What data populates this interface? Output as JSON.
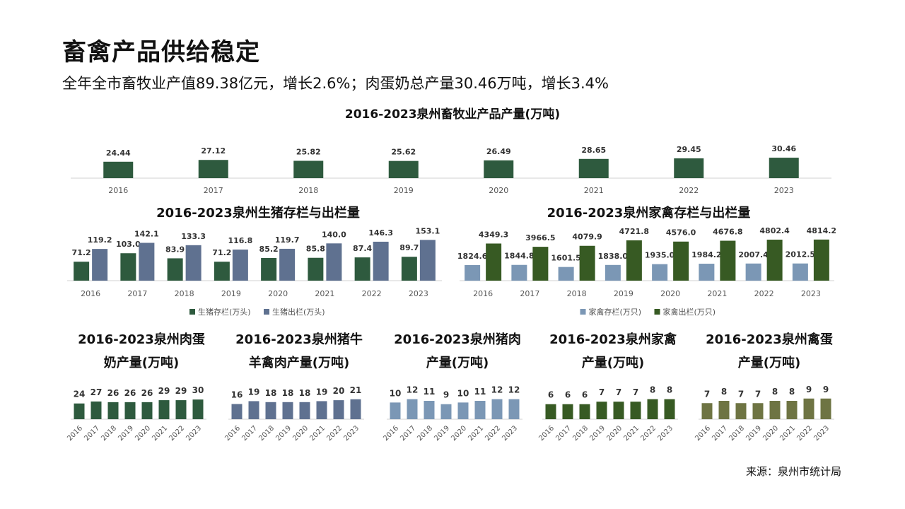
{
  "page": {
    "title": "畜禽产品供给稳定",
    "subtitle": "全年全市畜牧业产值89.38亿元，增长2.6%；肉蛋奶总产量30.46万吨，增长3.4%",
    "source": "来源：泉州市统计局"
  },
  "colors": {
    "dark_green": "#2e5a3e",
    "slate_blue": "#5f7190",
    "light_blue": "#7b97b5",
    "olive_green": "#375a23",
    "khaki_green": "#6e7443",
    "axis": "#d0d0d0",
    "tick_text": "#555555"
  },
  "chart_data": [
    {
      "id": "total",
      "type": "bar",
      "title": [
        "2016-2023泉州畜牧业产品产量(万吨)"
      ],
      "categories": [
        "2016",
        "2017",
        "2018",
        "2019",
        "2020",
        "2021",
        "2022",
        "2023"
      ],
      "series": [
        {
          "name": "畜牧业产品产量",
          "values": [
            24.44,
            27.12,
            25.82,
            25.62,
            26.49,
            28.65,
            29.45,
            30.46
          ],
          "labels": [
            "24.44",
            "27.12",
            "25.82",
            "25.62",
            "26.49",
            "28.65",
            "29.45",
            "30.46"
          ],
          "color": "#2e5a3e"
        }
      ],
      "ylim": [
        0,
        60
      ]
    },
    {
      "id": "pigs",
      "type": "bar",
      "title": [
        "2016-2023泉州生猪存栏与出栏量"
      ],
      "categories": [
        "2016",
        "2017",
        "2018",
        "2019",
        "2020",
        "2021",
        "2022",
        "2023"
      ],
      "series": [
        {
          "name": "生猪存栏(万头)",
          "values": [
            71.2,
            103.0,
            83.9,
            71.2,
            85.2,
            85.8,
            87.4,
            89.7
          ],
          "labels": [
            "71.2",
            "103.0",
            "83.9",
            "71.2",
            "85.2",
            "85.8",
            "87.4",
            "89.7"
          ],
          "color": "#2e5a3e"
        },
        {
          "name": "生猪出栏(万头)",
          "values": [
            119.2,
            142.1,
            133.3,
            116.8,
            119.7,
            140.0,
            146.3,
            153.1
          ],
          "labels": [
            "119.2",
            "142.1",
            "133.3",
            "116.8",
            "119.7",
            "140.0",
            "146.3",
            "153.1"
          ],
          "color": "#5f7190"
        }
      ],
      "ylim": [
        0,
        170
      ],
      "legend": "bottom"
    },
    {
      "id": "poultry",
      "type": "bar",
      "title": [
        "2016-2023泉州家禽存栏与出栏量"
      ],
      "categories": [
        "2016",
        "2017",
        "2018",
        "2019",
        "2020",
        "2021",
        "2022",
        "2023"
      ],
      "series": [
        {
          "name": "家禽存栏(万只)",
          "values": [
            1824.6,
            1844.8,
            1601.5,
            1838.0,
            1935.0,
            1984.2,
            2007.4,
            2012.5
          ],
          "labels": [
            "1824.6",
            "1844.8",
            "1601.5",
            "1838.0",
            "1935.0",
            "1984.2",
            "2007.4",
            "2012.5"
          ],
          "color": "#7b97b5"
        },
        {
          "name": "家禽出栏(万只)",
          "values": [
            4349.3,
            3966.5,
            4079.9,
            4721.8,
            4576.0,
            4676.8,
            4802.4,
            4814.2
          ],
          "labels": [
            "4349.3",
            "3966.5",
            "4079.9",
            "4721.8",
            "4576.0",
            "4676.8",
            "4802.4",
            "4814.2"
          ],
          "color": "#375a23"
        }
      ],
      "ylim": [
        0,
        5300
      ],
      "legend": "bottom"
    },
    {
      "id": "meat_egg_milk",
      "type": "bar",
      "title": [
        "2016-2023泉州肉蛋",
        "奶产量(万吨)"
      ],
      "categories": [
        "2016",
        "2017",
        "2018",
        "2019",
        "2020",
        "2021",
        "2022",
        "2023"
      ],
      "series": [
        {
          "name": "肉蛋奶产量",
          "values": [
            24,
            27,
            26,
            26,
            26,
            29,
            29,
            30
          ],
          "labels": [
            "24",
            "27",
            "26",
            "26",
            "26",
            "29",
            "29",
            "30"
          ],
          "color": "#2e5a3e"
        }
      ],
      "ylim": [
        0,
        42
      ]
    },
    {
      "id": "pork_beef_mutton_poultry",
      "type": "bar",
      "title": [
        "2016-2023泉州猪牛",
        "羊禽肉产量(万吨)"
      ],
      "categories": [
        "2016",
        "2017",
        "2018",
        "2019",
        "2020",
        "2021",
        "2022",
        "2023"
      ],
      "series": [
        {
          "name": "猪牛羊禽肉产量",
          "values": [
            16,
            19,
            18,
            18,
            18,
            19,
            20,
            21
          ],
          "labels": [
            "16",
            "19",
            "18",
            "18",
            "18",
            "19",
            "20",
            "21"
          ],
          "color": "#5f7190"
        }
      ],
      "ylim": [
        0,
        29
      ]
    },
    {
      "id": "pork",
      "type": "bar",
      "title": [
        "2016-2023泉州猪肉",
        "产量(万吨)"
      ],
      "categories": [
        "2016",
        "2017",
        "2018",
        "2019",
        "2020",
        "2021",
        "2022",
        "2023"
      ],
      "series": [
        {
          "name": "猪肉产量",
          "values": [
            10,
            12,
            11,
            9,
            10,
            11,
            12,
            12
          ],
          "labels": [
            "10",
            "12",
            "11",
            "9",
            "10",
            "11",
            "12",
            "12"
          ],
          "color": "#7b97b5"
        }
      ],
      "ylim": [
        0,
        16.5
      ]
    },
    {
      "id": "poultry_meat",
      "type": "bar",
      "title": [
        "2016-2023泉州家禽",
        "产量(万吨)"
      ],
      "categories": [
        "2016",
        "2017",
        "2018",
        "2019",
        "2020",
        "2021",
        "2022",
        "2023"
      ],
      "series": [
        {
          "name": "家禽产量",
          "values": [
            6,
            6,
            6,
            7,
            7,
            7,
            8,
            8
          ],
          "labels": [
            "6",
            "6",
            "6",
            "7",
            "7",
            "7",
            "8",
            "8"
          ],
          "color": "#375a23"
        }
      ],
      "ylim": [
        0,
        11
      ]
    },
    {
      "id": "eggs",
      "type": "bar",
      "title": [
        "2016-2023泉州禽蛋",
        "产量(万吨)"
      ],
      "categories": [
        "2016",
        "2017",
        "2018",
        "2019",
        "2020",
        "2021",
        "2022",
        "2023"
      ],
      "series": [
        {
          "name": "禽蛋产量",
          "values": [
            7,
            8,
            7,
            7,
            8,
            8,
            9,
            9
          ],
          "labels": [
            "7",
            "8",
            "7",
            "7",
            "8",
            "8",
            "9",
            "9"
          ],
          "color": "#6e7443"
        }
      ],
      "ylim": [
        0,
        12
      ]
    }
  ]
}
